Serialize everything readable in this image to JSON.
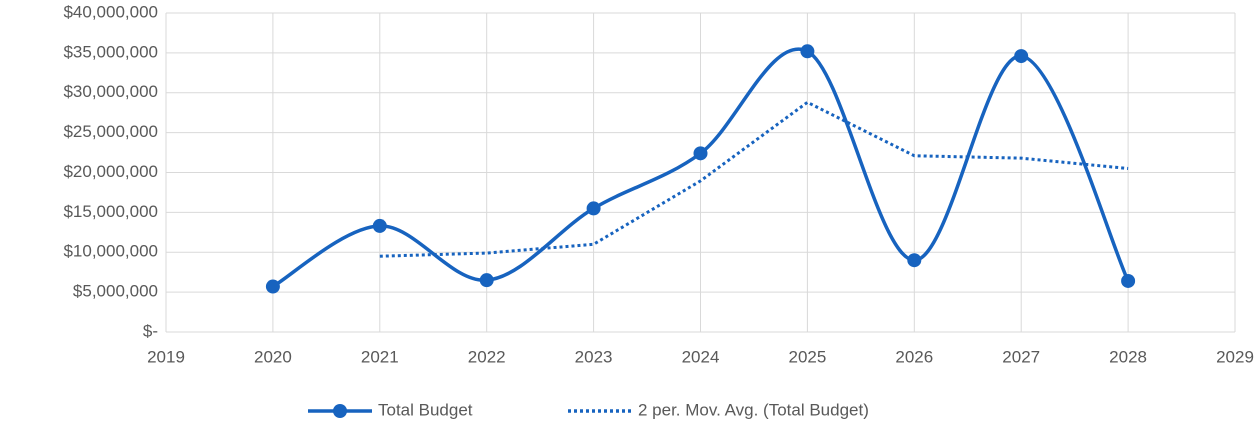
{
  "chart_data": {
    "type": "line",
    "x": [
      2020,
      2021,
      2022,
      2023,
      2024,
      2025,
      2026,
      2027,
      2028
    ],
    "series": [
      {
        "name": "Total Budget",
        "color": "#1763bf",
        "smooth": true,
        "markers": true,
        "line_style": "solid",
        "values": [
          5700000,
          13300000,
          6500000,
          15500000,
          22400000,
          35200000,
          9000000,
          34600000,
          6400000
        ]
      },
      {
        "name": "2 per. Mov. Avg. (Total Budget)",
        "color": "#1763bf",
        "smooth": false,
        "markers": false,
        "line_style": "dotted",
        "values": [
          null,
          9500000,
          9900000,
          11000000,
          18950000,
          28800000,
          22100000,
          21800000,
          20500000
        ]
      }
    ],
    "xlim": [
      2019,
      2029
    ],
    "xticks": [
      2019,
      2020,
      2021,
      2022,
      2023,
      2024,
      2025,
      2026,
      2027,
      2028,
      2029
    ],
    "ylim": [
      0,
      40000000
    ],
    "yticks": [
      {
        "value": 0,
        "label": "$-"
      },
      {
        "value": 5000000,
        "label": "$5,000,000"
      },
      {
        "value": 10000000,
        "label": "$10,000,000"
      },
      {
        "value": 15000000,
        "label": "$15,000,000"
      },
      {
        "value": 20000000,
        "label": "$20,000,000"
      },
      {
        "value": 25000000,
        "label": "$25,000,000"
      },
      {
        "value": 30000000,
        "label": "$30,000,000"
      },
      {
        "value": 35000000,
        "label": "$35,000,000"
      },
      {
        "value": 40000000,
        "label": "$40,000,000"
      }
    ],
    "grid": true,
    "legend": "bottom"
  }
}
